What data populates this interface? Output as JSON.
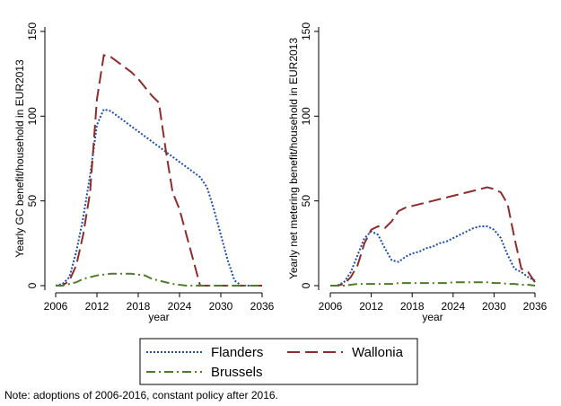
{
  "chart_data": [
    {
      "type": "line",
      "ylabel": "Yearly GC benefit/household in EUR2013",
      "xlabel": "year",
      "x": [
        2006,
        2007,
        2008,
        2009,
        2010,
        2011,
        2012,
        2013,
        2014,
        2015,
        2016,
        2017,
        2018,
        2019,
        2020,
        2021,
        2022,
        2023,
        2024,
        2025,
        2026,
        2027,
        2028,
        2029,
        2030,
        2031,
        2032,
        2033,
        2034,
        2035,
        2036
      ],
      "xlim": [
        2006,
        2036
      ],
      "xticks": [
        2006,
        2012,
        2018,
        2024,
        2030,
        2036
      ],
      "ylim": [
        0,
        150
      ],
      "yticks": [
        0,
        50,
        100,
        150
      ],
      "series": [
        {
          "name": "Flanders",
          "color": "#1f4e9c",
          "values": [
            0,
            1,
            5,
            20,
            40,
            65,
            95,
            104,
            103,
            100,
            97,
            94,
            91,
            88,
            85,
            82,
            79,
            76,
            73,
            70,
            67,
            64,
            58,
            45,
            30,
            15,
            3,
            0,
            0,
            0,
            0
          ]
        },
        {
          "name": "Wallonia",
          "color": "#8b2d2d",
          "values": [
            0,
            0,
            3,
            12,
            30,
            55,
            110,
            136,
            135,
            132,
            129,
            126,
            122,
            117,
            112,
            108,
            80,
            55,
            45,
            30,
            15,
            0,
            0,
            0,
            0,
            0,
            0,
            0,
            0,
            0,
            0
          ]
        },
        {
          "name": "Brussels",
          "color": "#4f7a28",
          "values": [
            0,
            0,
            1,
            2,
            4,
            5,
            6,
            6.5,
            7,
            7,
            7,
            7,
            6.5,
            6,
            4,
            3,
            2,
            1,
            0.5,
            0,
            0,
            0,
            0,
            0,
            0,
            0,
            0,
            0,
            0,
            0,
            0
          ]
        }
      ]
    },
    {
      "type": "line",
      "ylabel": "Yearly net metering benefit/household in EUR2013",
      "xlabel": "year",
      "x": [
        2006,
        2007,
        2008,
        2009,
        2010,
        2011,
        2012,
        2013,
        2014,
        2015,
        2016,
        2017,
        2018,
        2019,
        2020,
        2021,
        2022,
        2023,
        2024,
        2025,
        2026,
        2027,
        2028,
        2029,
        2030,
        2031,
        2032,
        2033,
        2034,
        2035,
        2036
      ],
      "xlim": [
        2006,
        2036
      ],
      "xticks": [
        2006,
        2012,
        2018,
        2024,
        2030,
        2036
      ],
      "ylim": [
        0,
        150
      ],
      "yticks": [
        0,
        50,
        100,
        150
      ],
      "series": [
        {
          "name": "Flanders",
          "color": "#1f4e9c",
          "values": [
            0,
            0,
            2,
            8,
            18,
            28,
            32,
            30,
            22,
            15,
            14,
            17,
            19,
            20,
            22,
            23,
            25,
            26,
            28,
            30,
            32,
            34,
            35,
            35,
            33,
            28,
            18,
            10,
            8,
            5,
            3
          ]
        },
        {
          "name": "Wallonia",
          "color": "#8b2d2d",
          "values": [
            0,
            0,
            1,
            5,
            12,
            25,
            33,
            35,
            34,
            38,
            44,
            46,
            47,
            48,
            49,
            50,
            51,
            52,
            53,
            54,
            55,
            56,
            57,
            58,
            57,
            55,
            48,
            28,
            10,
            8,
            2
          ]
        },
        {
          "name": "Brussels",
          "color": "#4f7a28",
          "values": [
            0,
            0,
            0,
            0.5,
            1,
            1,
            1,
            1,
            1,
            1,
            1.5,
            1.5,
            1.5,
            1.5,
            1.5,
            1.5,
            1.5,
            1.5,
            2,
            2,
            2,
            2,
            2,
            2,
            1.5,
            1.5,
            1,
            1,
            0.5,
            0.5,
            0
          ]
        }
      ]
    }
  ],
  "note": "Note: adoptions of 2006-2016, constant policy after 2016."
}
